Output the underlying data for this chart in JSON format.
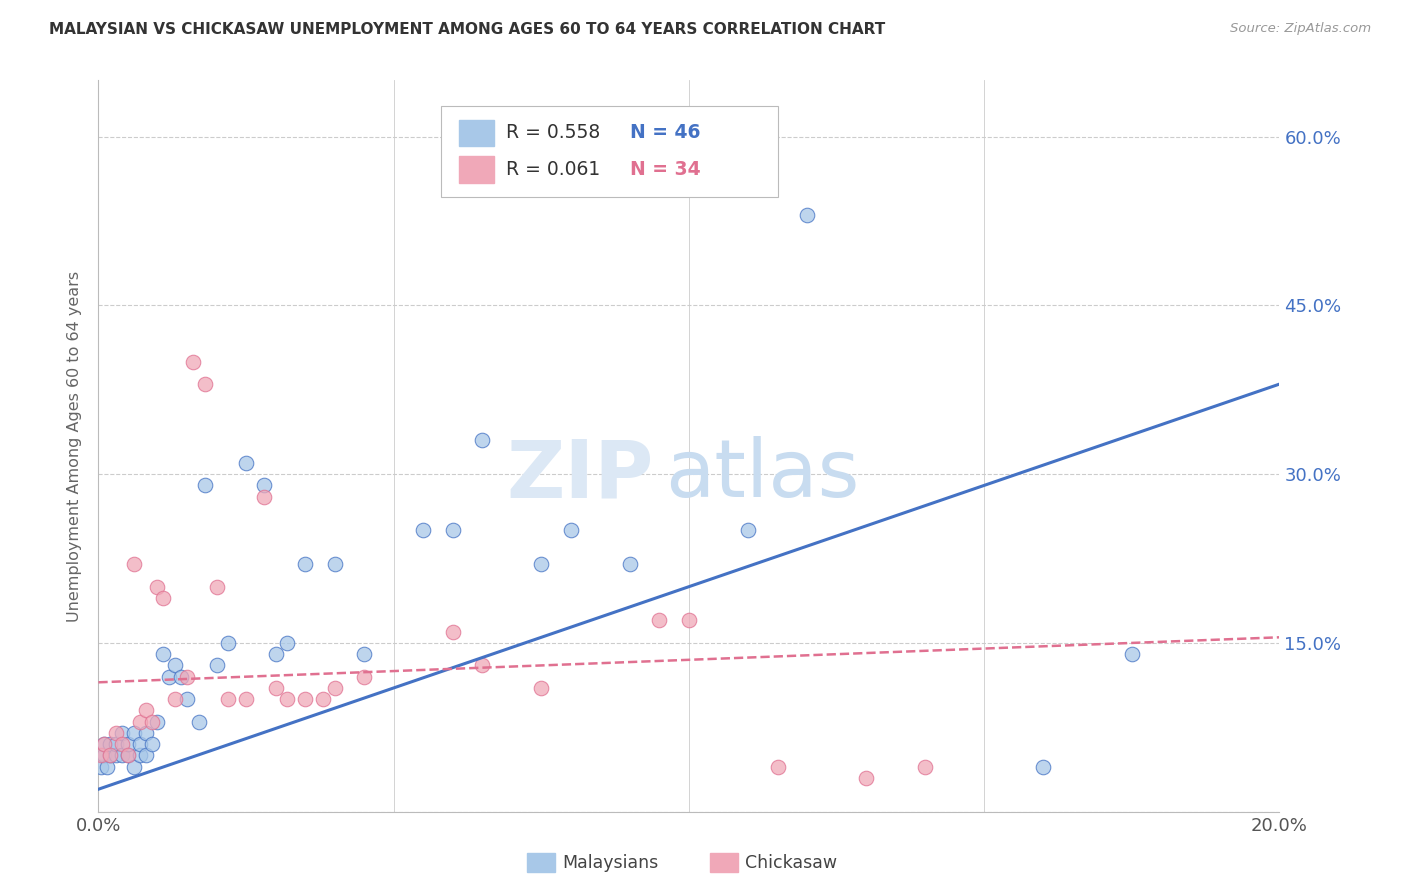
{
  "title": "MALAYSIAN VS CHICKASAW UNEMPLOYMENT AMONG AGES 60 TO 64 YEARS CORRELATION CHART",
  "source": "Source: ZipAtlas.com",
  "ylabel": "Unemployment Among Ages 60 to 64 years",
  "xlim": [
    0.0,
    0.2
  ],
  "ylim": [
    0.0,
    0.65
  ],
  "x_ticks": [
    0.0,
    0.05,
    0.1,
    0.15,
    0.2
  ],
  "x_tick_labels": [
    "0.0%",
    "",
    "",
    "",
    "20.0%"
  ],
  "y_ticks": [
    0.0,
    0.15,
    0.3,
    0.45,
    0.6
  ],
  "y_tick_labels_right": [
    "",
    "15.0%",
    "30.0%",
    "45.0%",
    "60.0%"
  ],
  "background_color": "#ffffff",
  "grid_color": "#cccccc",
  "watermark_zip": "ZIP",
  "watermark_atlas": "atlas",
  "legend_R1": "R = 0.558",
  "legend_N1": "N = 46",
  "legend_R2": "R = 0.061",
  "legend_N2": "N = 34",
  "blue_scatter_color": "#A8C8E8",
  "pink_scatter_color": "#F0A8B8",
  "blue_line_color": "#4472C4",
  "pink_line_color": "#E07090",
  "blue_trend_x": [
    0.0,
    0.2
  ],
  "blue_trend_y": [
    0.02,
    0.38
  ],
  "pink_trend_x": [
    0.0,
    0.2
  ],
  "pink_trend_y": [
    0.115,
    0.155
  ],
  "malaysians_x": [
    0.0005,
    0.001,
    0.001,
    0.0015,
    0.002,
    0.002,
    0.003,
    0.003,
    0.004,
    0.004,
    0.005,
    0.005,
    0.006,
    0.006,
    0.007,
    0.007,
    0.008,
    0.008,
    0.009,
    0.01,
    0.011,
    0.012,
    0.013,
    0.014,
    0.015,
    0.017,
    0.018,
    0.02,
    0.022,
    0.025,
    0.028,
    0.03,
    0.032,
    0.035,
    0.04,
    0.045,
    0.055,
    0.06,
    0.065,
    0.075,
    0.08,
    0.09,
    0.11,
    0.12,
    0.16,
    0.175
  ],
  "malaysians_y": [
    0.04,
    0.05,
    0.06,
    0.04,
    0.05,
    0.06,
    0.05,
    0.06,
    0.05,
    0.07,
    0.05,
    0.06,
    0.04,
    0.07,
    0.05,
    0.06,
    0.05,
    0.07,
    0.06,
    0.08,
    0.14,
    0.12,
    0.13,
    0.12,
    0.1,
    0.08,
    0.29,
    0.13,
    0.15,
    0.31,
    0.29,
    0.14,
    0.15,
    0.22,
    0.22,
    0.14,
    0.25,
    0.25,
    0.33,
    0.22,
    0.25,
    0.22,
    0.25,
    0.53,
    0.04,
    0.14
  ],
  "chickasaw_x": [
    0.0005,
    0.001,
    0.002,
    0.003,
    0.004,
    0.005,
    0.006,
    0.007,
    0.008,
    0.009,
    0.01,
    0.011,
    0.013,
    0.015,
    0.016,
    0.018,
    0.02,
    0.022,
    0.025,
    0.028,
    0.03,
    0.032,
    0.035,
    0.038,
    0.04,
    0.045,
    0.06,
    0.065,
    0.075,
    0.095,
    0.1,
    0.115,
    0.13,
    0.14
  ],
  "chickasaw_y": [
    0.05,
    0.06,
    0.05,
    0.07,
    0.06,
    0.05,
    0.22,
    0.08,
    0.09,
    0.08,
    0.2,
    0.19,
    0.1,
    0.12,
    0.4,
    0.38,
    0.2,
    0.1,
    0.1,
    0.28,
    0.11,
    0.1,
    0.1,
    0.1,
    0.11,
    0.12,
    0.16,
    0.13,
    0.11,
    0.17,
    0.17,
    0.04,
    0.03,
    0.04
  ]
}
